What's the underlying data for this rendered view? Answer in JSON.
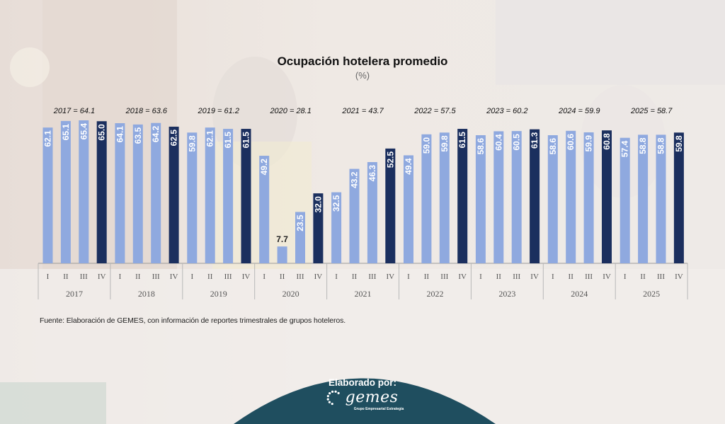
{
  "chart_data": {
    "type": "bar",
    "title": "Ocupación hotelera promedio",
    "subtitle": "(%)",
    "ylim": [
      0,
      70
    ],
    "years": [
      {
        "year": "2017",
        "annual_label": "2017 = 64.1",
        "quarters": [
          "I",
          "II",
          "III",
          "IV"
        ],
        "values": [
          62.1,
          65.1,
          65.4,
          65.0
        ]
      },
      {
        "year": "2018",
        "annual_label": "2018 = 63.6",
        "quarters": [
          "I",
          "II",
          "III",
          "IV"
        ],
        "values": [
          64.1,
          63.5,
          64.2,
          62.5
        ]
      },
      {
        "year": "2019",
        "annual_label": "2019 = 61.2",
        "quarters": [
          "I",
          "II",
          "III",
          "IV"
        ],
        "values": [
          59.8,
          62.1,
          61.5,
          61.5
        ]
      },
      {
        "year": "2020",
        "annual_label": "2020 = 28.1",
        "quarters": [
          "I",
          "II",
          "III",
          "IV"
        ],
        "values": [
          49.2,
          7.7,
          23.5,
          32.0
        ]
      },
      {
        "year": "2021",
        "annual_label": "2021 = 43.7",
        "quarters": [
          "I",
          "II",
          "III",
          "IV"
        ],
        "values": [
          32.5,
          43.2,
          46.3,
          52.5
        ]
      },
      {
        "year": "2022",
        "annual_label": "2022 = 57.5",
        "quarters": [
          "I",
          "II",
          "III",
          "IV"
        ],
        "values": [
          49.4,
          59.0,
          59.8,
          61.5
        ]
      },
      {
        "year": "2023",
        "annual_label": "2023 = 60.2",
        "quarters": [
          "I",
          "II",
          "III",
          "IV"
        ],
        "values": [
          58.6,
          60.4,
          60.5,
          61.3
        ]
      },
      {
        "year": "2024",
        "annual_label": "2024 = 59.9",
        "quarters": [
          "I",
          "II",
          "III",
          "IV"
        ],
        "values": [
          58.6,
          60.6,
          59.9,
          60.8
        ]
      },
      {
        "year": "2025",
        "annual_label": "2025 = 58.7",
        "quarters": [
          "I",
          "II",
          "III",
          "IV"
        ],
        "values": [
          57.4,
          58.8,
          58.8,
          59.8
        ]
      }
    ],
    "colors": {
      "quarter": "#8fa9df",
      "q4": "#1b2f5e",
      "axis": "#9a9a9a"
    }
  },
  "source_note": "Fuente: Elaboración de GEMES, con información de reportes trimestrales de grupos hoteleros.",
  "badge": {
    "label": "Elaborado por:",
    "logo": "gemes",
    "logo_sub": "Grupo Empresarial Estrategia",
    "color": "#1f4e5f"
  }
}
